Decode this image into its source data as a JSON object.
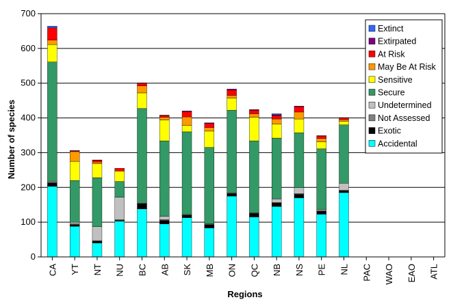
{
  "chart_data": {
    "type": "bar",
    "stacked": true,
    "xlabel": "Regions",
    "ylabel": "Number of species",
    "ylim": [
      0,
      700
    ],
    "yticks": [
      0,
      100,
      200,
      300,
      400,
      500,
      600,
      700
    ],
    "grid": true,
    "legend_position": "top-right",
    "categories": [
      "CA",
      "YT",
      "NT",
      "NU",
      "BC",
      "AB",
      "SK",
      "MB",
      "ON",
      "QC",
      "NB",
      "NS",
      "PE",
      "NL",
      "PAC",
      "WAO",
      "EAO",
      "ATL"
    ],
    "series": [
      {
        "name": "Accidental",
        "color": "#00ffff",
        "values": [
          203,
          88,
          40,
          103,
          138,
          95,
          113,
          83,
          175,
          115,
          145,
          170,
          123,
          185,
          0,
          0,
          0,
          0
        ]
      },
      {
        "name": "Exotic",
        "color": "#000000",
        "values": [
          10,
          5,
          5,
          2,
          15,
          10,
          7,
          10,
          7,
          10,
          10,
          10,
          8,
          5,
          0,
          0,
          0,
          0
        ]
      },
      {
        "name": "Not Assessed",
        "color": "#808080",
        "values": [
          2,
          2,
          2,
          2,
          2,
          2,
          2,
          2,
          2,
          2,
          2,
          2,
          2,
          2,
          0,
          0,
          0,
          0
        ]
      },
      {
        "name": "Undetermined",
        "color": "#c0c0c0",
        "values": [
          3,
          5,
          40,
          65,
          0,
          10,
          0,
          0,
          0,
          0,
          10,
          17,
          3,
          20,
          0,
          0,
          0,
          0
        ]
      },
      {
        "name": "Secure",
        "color": "#339966",
        "values": [
          343,
          120,
          141,
          45,
          272,
          217,
          238,
          220,
          238,
          207,
          175,
          158,
          175,
          168,
          0,
          0,
          0,
          0
        ]
      },
      {
        "name": "Sensitive",
        "color": "#ffff00",
        "values": [
          50,
          55,
          40,
          30,
          45,
          60,
          18,
          47,
          35,
          68,
          40,
          40,
          20,
          10,
          0,
          0,
          0,
          0
        ]
      },
      {
        "name": "May Be At Risk",
        "color": "#ff9900",
        "values": [
          13,
          28,
          5,
          0,
          20,
          8,
          25,
          10,
          8,
          10,
          15,
          20,
          10,
          5,
          0,
          0,
          0,
          0
        ]
      },
      {
        "name": "At Risk",
        "color": "#ff0000",
        "values": [
          35,
          2,
          5,
          8,
          8,
          5,
          15,
          12,
          15,
          10,
          10,
          15,
          7,
          5,
          0,
          0,
          0,
          0
        ]
      },
      {
        "name": "Extirpated",
        "color": "#800080",
        "values": [
          0,
          1,
          1,
          0,
          1,
          1,
          2,
          2,
          3,
          2,
          2,
          2,
          1,
          1,
          0,
          0,
          0,
          0
        ]
      },
      {
        "name": "Extinct",
        "color": "#3366ff",
        "values": [
          5,
          0,
          0,
          0,
          0,
          0,
          0,
          0,
          0,
          0,
          3,
          0,
          0,
          0,
          0,
          0,
          0,
          0
        ]
      }
    ],
    "legend_order": [
      "Extinct",
      "Extirpated",
      "At Risk",
      "May Be At Risk",
      "Sensitive",
      "Secure",
      "Undetermined",
      "Not Assessed",
      "Exotic",
      "Accidental"
    ]
  }
}
